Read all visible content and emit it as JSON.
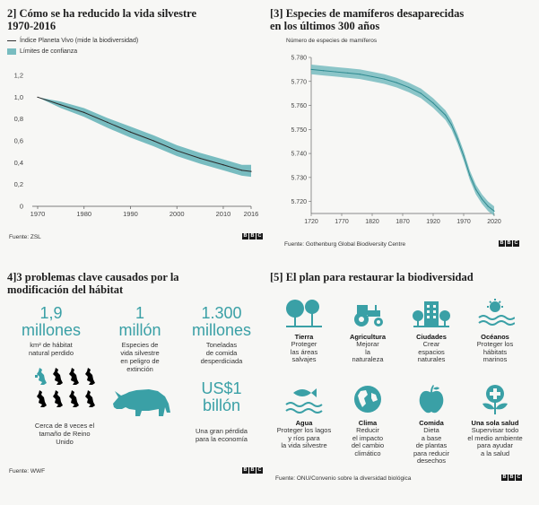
{
  "colors": {
    "teal": "#3aa0a6",
    "band": "#78bcc0",
    "line": "#2a2a2a",
    "ink": "#1e1e1e"
  },
  "panel1": {
    "title_line1": "2] Cómo se ha reducido la vida silvestre",
    "title_line2": "1970-2016",
    "legend_line": "Índice Planeta Vivo (mide la biodiversidad)",
    "legend_band": "Límites de confianza",
    "source": "Fuente: ZSL"
  },
  "panel2": {
    "title_line1": "[3] Especies de mamíferos desaparecidas",
    "title_line2": "en los últimos 300 años",
    "ylabel": "Número de especies de mamíferos",
    "source": "Fuente: Gothenburg Global Biodiversity Centre"
  },
  "panel3": {
    "title_line1": "4]3 problemas clave causados por la",
    "title_line2": "modificación del hábitat",
    "stat1_num": "1,9",
    "stat1_unit": "millones",
    "stat1_desc1": "km² de hábitat",
    "stat1_desc2": "natural perdido",
    "stat2_num": "1",
    "stat2_unit": "millón",
    "stat2_desc1": "Especies de",
    "stat2_desc2": "vida silvestre",
    "stat2_desc3": "en peligro de",
    "stat2_desc4": "extinción",
    "stat3_num": "1.300",
    "stat3_unit": "millones",
    "stat3_desc1": "Toneladas",
    "stat3_desc2": "de comida",
    "stat3_desc3": "desperdiciada",
    "uk_desc1": "Cerca de 8 veces el",
    "uk_desc2": "tamaño de Reino",
    "uk_desc3": "Unido",
    "stat4_num1": "US$1",
    "stat4_num2": "billón",
    "stat4_desc1": "Una gran pérdida",
    "stat4_desc2": "para la economía",
    "source": "Fuente: WWF"
  },
  "panel4": {
    "title": "[5] El plan para restaurar la biodiversidad",
    "items": [
      {
        "title": "Tierra",
        "lines": [
          "Proteger",
          "las áreas",
          "salvajes"
        ],
        "icon": "trees-icon"
      },
      {
        "title": "Agricultura",
        "lines": [
          "Mejorar",
          "la",
          "naturaleza"
        ],
        "icon": "tractor-icon"
      },
      {
        "title": "Ciudades",
        "lines": [
          "Crear",
          "espacios",
          "naturales"
        ],
        "icon": "city-icon"
      },
      {
        "title": "Océanos",
        "lines": [
          "Proteger los",
          "hábitats",
          "marinos"
        ],
        "icon": "sun-waves-icon"
      },
      {
        "title": "Agua",
        "lines": [
          "Proteger los lagos",
          "y ríos para",
          "la vida silvestre"
        ],
        "icon": "fish-icon"
      },
      {
        "title": "Clima",
        "lines": [
          "Reducir",
          "el impacto",
          "del cambio",
          "climático"
        ],
        "icon": "globe-icon"
      },
      {
        "title": "Comida",
        "lines": [
          "Dieta",
          "a base",
          "de plantas",
          "para reducir",
          "desechos"
        ],
        "icon": "apple-icon"
      },
      {
        "title": "Una sola salud",
        "lines": [
          "Supervisar todo",
          "el medio ambiente",
          "para ayudar",
          "a la salud"
        ],
        "icon": "health-leaf-icon"
      }
    ],
    "source": "Fuente: ONU/Convenio sobre la diversidad biológica"
  },
  "bbc": [
    "B",
    "B",
    "C"
  ],
  "chart_data": [
    {
      "type": "line",
      "title": "Cómo se ha reducido la vida silvestre 1970-2016",
      "series": [
        {
          "name": "Índice Planeta Vivo (mide la biodiversidad)",
          "x": [
            1970,
            1975,
            1980,
            1985,
            1990,
            1995,
            2000,
            2005,
            2010,
            2014,
            2016
          ],
          "values": [
            1.0,
            0.93,
            0.86,
            0.77,
            0.68,
            0.6,
            0.51,
            0.44,
            0.38,
            0.33,
            0.32
          ]
        },
        {
          "name": "Límites de confianza",
          "x": [
            1970,
            1975,
            1980,
            1985,
            1990,
            1995,
            2000,
            2005,
            2010,
            2014,
            2016
          ],
          "lower": [
            1.0,
            0.9,
            0.82,
            0.72,
            0.63,
            0.55,
            0.46,
            0.39,
            0.33,
            0.28,
            0.27
          ],
          "upper": [
            1.0,
            0.96,
            0.9,
            0.81,
            0.73,
            0.65,
            0.56,
            0.49,
            0.43,
            0.38,
            0.38
          ]
        }
      ],
      "xticks": [
        1970,
        1980,
        1990,
        2000,
        2010,
        2016
      ],
      "yticks": [
        0,
        0.2,
        0.4,
        0.6,
        0.8,
        1.0,
        1.2
      ],
      "ytick_labels": [
        "0",
        "0,2",
        "0,4",
        "0,6",
        "0,8",
        "1,0",
        "1,2"
      ],
      "xlim": [
        1970,
        2016
      ],
      "ylim": [
        0,
        1.2
      ],
      "grid": false,
      "legend": "top-left"
    },
    {
      "type": "line",
      "title": "Especies de mamíferos desaparecidas en los últimos 300 años",
      "ylabel": "Número de especies de mamíferos",
      "x": [
        1720,
        1740,
        1760,
        1780,
        1800,
        1820,
        1840,
        1860,
        1880,
        1900,
        1920,
        1940,
        1950,
        1960,
        1970,
        1980,
        1990,
        2000,
        2010,
        2020
      ],
      "values": [
        5775,
        5774.5,
        5774,
        5773.5,
        5773,
        5772,
        5771,
        5769.5,
        5767.5,
        5765,
        5761,
        5756,
        5752,
        5746,
        5739,
        5731,
        5725,
        5721,
        5718,
        5716
      ],
      "band_halfwidth": 2,
      "xticks": [
        1720,
        1770,
        1820,
        1870,
        1920,
        1970,
        2020
      ],
      "yticks": [
        5720,
        5730,
        5740,
        5750,
        5760,
        5770,
        5780
      ],
      "ytick_labels": [
        "5.720",
        "5.730",
        "5.740",
        "5.750",
        "5.760",
        "5.770",
        "5.780"
      ],
      "xlim": [
        1720,
        2020
      ],
      "ylim": [
        5715,
        5780
      ],
      "grid": false
    }
  ]
}
